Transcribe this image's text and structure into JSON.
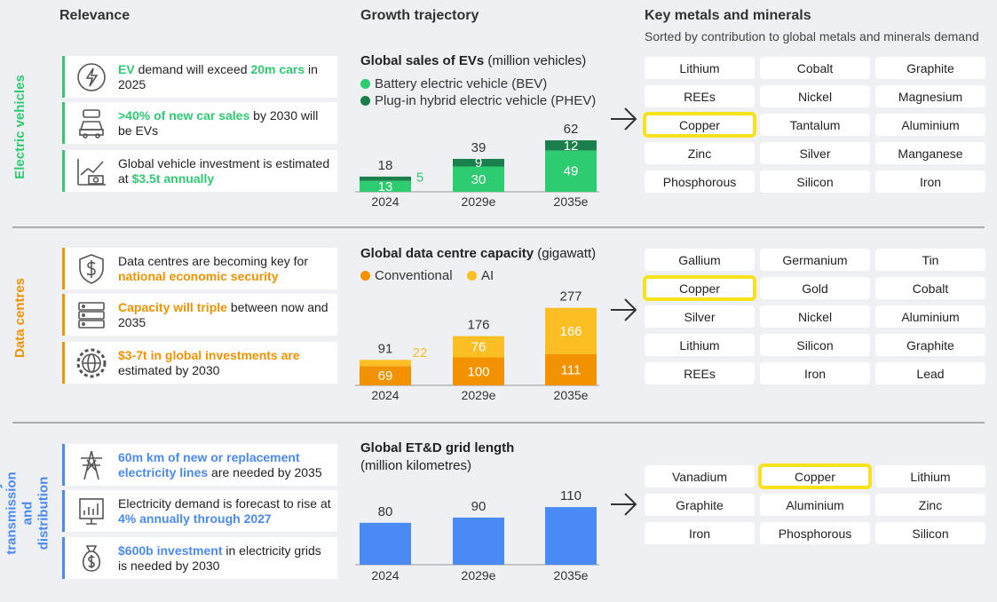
{
  "headers": {
    "relevance": "Relevance",
    "growth": "Growth trajectory",
    "metals": "Key metals and minerals",
    "metals_sub": "Sorted by contribution to global metals and minerals demand"
  },
  "colors": {
    "ev": "#2ecc71",
    "ev_dark": "#1a7f4b",
    "dc": "#f39200",
    "dc_light": "#fbbf24",
    "grid": "#4a8af4",
    "highlight": "#f7e21b"
  },
  "sections": [
    {
      "label": "Electric vehicles",
      "cards": [
        {
          "icon": "ev-charging-icon",
          "parts": [
            [
              "EV",
              true
            ],
            [
              " demand will exceed ",
              false
            ],
            [
              "20m cars",
              true
            ],
            [
              " in 2025",
              false
            ]
          ]
        },
        {
          "icon": "car-battery-icon",
          "parts": [
            [
              ">40% of new car sales",
              true
            ],
            [
              " by 2030 will be EVs",
              false
            ]
          ]
        },
        {
          "icon": "investment-chart-icon",
          "parts": [
            [
              "Global vehicle investment is estimated at ",
              false
            ],
            [
              "$3.5t annually",
              true
            ]
          ]
        }
      ],
      "chart_title": "Global sales of EVs",
      "chart_unit": " (million vehicles)",
      "legend": [
        "Battery electric vehicle (BEV)",
        "Plug-in hybrid electric vehicle (PHEV)"
      ],
      "minerals": [
        "Lithium",
        "Cobalt",
        "Graphite",
        "REEs",
        "Nickel",
        "Magnesium",
        "Copper",
        "Tantalum",
        "Aluminium",
        "Zinc",
        "Silver",
        "Manganese",
        "Phosphorous",
        "Silicon",
        "Iron"
      ],
      "highlight_index": 6
    },
    {
      "label": "Data centres",
      "cards": [
        {
          "icon": "shield-dollar-icon",
          "parts": [
            [
              "Data centres are becoming key for ",
              false
            ],
            [
              "national economic security",
              true
            ]
          ]
        },
        {
          "icon": "server-icon",
          "parts": [
            [
              "Capacity will triple",
              true
            ],
            [
              " between now and 2035",
              false
            ]
          ]
        },
        {
          "icon": "globe-gear-icon",
          "parts": [
            [
              "$3-7t in global investments are",
              true
            ],
            [
              " estimated by 2030",
              false
            ]
          ]
        }
      ],
      "chart_title": "Global data centre capacity",
      "chart_unit": " (gigawatt)",
      "legend": [
        "Conventional",
        "AI"
      ],
      "minerals": [
        "Gallium",
        "Germanium",
        "Tin",
        "Copper",
        "Gold",
        "Cobalt",
        "Silver",
        "Nickel",
        "Aluminium",
        "Lithium",
        "Silicon",
        "Graphite",
        "REEs",
        "Iron",
        "Lead"
      ],
      "highlight_index": 3
    },
    {
      "label": "Electricity transmission and distribution",
      "cards": [
        {
          "icon": "transmission-tower-icon",
          "parts": [
            [
              "60m km of new or replacement electricity lines",
              true
            ],
            [
              " are needed by 2035",
              false
            ]
          ]
        },
        {
          "icon": "demand-chart-icon",
          "parts": [
            [
              "Electricity demand is forecast to rise at ",
              false
            ],
            [
              "4% annually through 2027",
              true
            ]
          ]
        },
        {
          "icon": "money-bag-icon",
          "parts": [
            [
              "$600b investment",
              true
            ],
            [
              " in electricity grids is needed by 2030",
              false
            ]
          ]
        }
      ],
      "chart_title": "Global ET&D grid length",
      "chart_unit": "(million kilometres)",
      "legend": [],
      "minerals": [
        "Vanadium",
        "Copper",
        "Lithium",
        "Graphite",
        "Aluminium",
        "Zinc",
        "Iron",
        "Phosphorous",
        "Silicon"
      ],
      "highlight_index": 1
    }
  ],
  "chart_data": [
    {
      "type": "bar",
      "stacked": true,
      "title": "Global sales of EVs (million vehicles)",
      "categories": [
        "2024",
        "2029e",
        "2035e"
      ],
      "series": [
        {
          "name": "Battery electric vehicle (BEV)",
          "values": [
            13,
            30,
            49
          ]
        },
        {
          "name": "Plug-in hybrid electric vehicle (PHEV)",
          "values": [
            5,
            9,
            12
          ]
        }
      ],
      "totals": [
        18,
        39,
        62
      ],
      "legend": "top-left"
    },
    {
      "type": "bar",
      "stacked": true,
      "title": "Global data centre capacity (gigawatt)",
      "categories": [
        "2024",
        "2029e",
        "2035e"
      ],
      "series": [
        {
          "name": "Conventional",
          "values": [
            69,
            100,
            111
          ]
        },
        {
          "name": "AI",
          "values": [
            22,
            76,
            166
          ]
        }
      ],
      "totals": [
        91,
        176,
        277
      ],
      "legend": "top-left"
    },
    {
      "type": "bar",
      "title": "Global ET&D grid length (million kilometres)",
      "categories": [
        "2024",
        "2029e",
        "2035e"
      ],
      "values": [
        80,
        90,
        110
      ]
    }
  ]
}
